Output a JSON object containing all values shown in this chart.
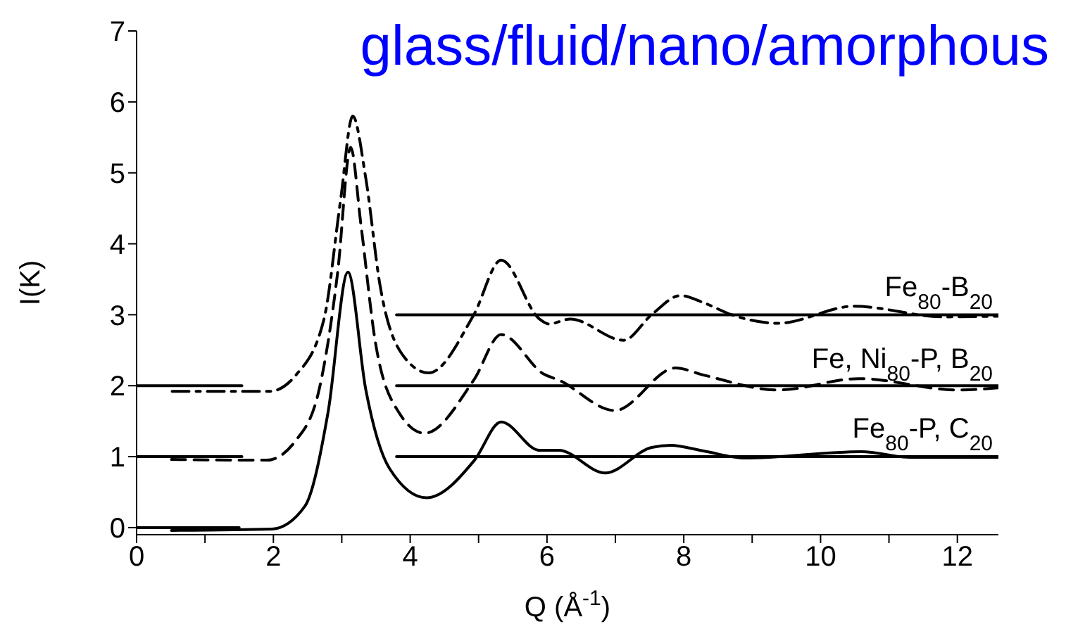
{
  "chart_data": {
    "type": "line",
    "title": "glass/fluid/nano/amorphous",
    "xlabel": "Q (Å$^{-1}$)",
    "ylabel": "I(K)",
    "xlim": [
      0,
      12.6
    ],
    "ylim": [
      -0.1,
      7
    ],
    "xticks": [
      0,
      {
        "value": 1,
        "label": null
      },
      2,
      {
        "value": 3,
        "label": null
      },
      4,
      {
        "value": 5,
        "label": null
      },
      6,
      {
        "value": 7,
        "label": null
      },
      8,
      {
        "value": 9,
        "label": null
      },
      10,
      {
        "value": 11,
        "label": null
      },
      12
    ],
    "yticks": [
      0,
      1,
      2,
      3,
      4,
      5,
      6,
      7
    ],
    "marker": "none",
    "series": [
      {
        "color": "#000000",
        "line_style": "solid",
        "x": [
          0,
          1.5
        ],
        "values": [
          0,
          0
        ]
      },
      {
        "color": "#000000",
        "line_style": "solid",
        "x": [
          0,
          1.54
        ],
        "values": [
          1,
          1
        ]
      },
      {
        "color": "#000000",
        "line_style": "solid",
        "x": [
          0,
          1.54
        ],
        "values": [
          2,
          2
        ]
      },
      {
        "color": "#000000",
        "line_style": "solid",
        "x": [
          3.8,
          12.6
        ],
        "values": [
          1,
          1
        ]
      },
      {
        "color": "#000000",
        "line_style": "solid",
        "x": [
          3.8,
          12.6
        ],
        "values": [
          2,
          2
        ]
      },
      {
        "color": "#000000",
        "line_style": "solid",
        "x": [
          3.8,
          12.6
        ],
        "values": [
          3,
          3
        ]
      },
      {
        "name": "Fe$_{80}$-P, C$_{20}$",
        "color": "#000000",
        "line_style": "solid",
        "x": [
          0.51,
          1.98,
          2.46,
          2.8,
          3.09,
          3.35,
          3.7,
          4.24,
          4.94,
          5.33,
          5.89,
          6.17,
          6.85,
          7.53,
          7.81,
          8.29,
          8.9,
          10.6,
          11.3,
          12.6
        ],
        "values": [
          -0.04,
          -0.02,
          0.3,
          1.63,
          3.6,
          1.95,
          0.83,
          0.42,
          0.95,
          1.49,
          1.09,
          1.09,
          0.77,
          1.13,
          1.16,
          1.08,
          0.98,
          1.07,
          0.99,
          0.99
        ]
      },
      {
        "name": "Fe, Ni$_{80}$-P, B$_{20}$",
        "color": "#000000",
        "line_style": "dashed",
        "x": [
          0.51,
          1.9,
          2.33,
          2.67,
          2.94,
          3.13,
          3.28,
          3.49,
          3.83,
          4.21,
          4.93,
          5.33,
          5.96,
          6.17,
          6.99,
          7.88,
          8.29,
          9.38,
          10.56,
          12.0,
          12.6
        ],
        "values": [
          0.96,
          0.95,
          1.23,
          1.95,
          3.6,
          5.36,
          4.27,
          2.62,
          1.63,
          1.33,
          2.08,
          2.72,
          2.16,
          2.08,
          1.65,
          2.25,
          2.15,
          1.94,
          2.1,
          1.94,
          1.97
        ]
      },
      {
        "name": "Fe$_{80}$-B$_{20}$",
        "color": "#000000",
        "line_style": "dashdot",
        "x": [
          0.52,
          1.94,
          2.33,
          2.74,
          2.98,
          3.16,
          3.35,
          3.56,
          3.9,
          4.27,
          4.93,
          5.33,
          5.89,
          6.03,
          6.34,
          7.12,
          7.53,
          7.95,
          8.29,
          8.7,
          9.38,
          10.49,
          11.8,
          12.6
        ],
        "values": [
          1.92,
          1.92,
          2.15,
          2.94,
          4.6,
          5.8,
          4.93,
          3.41,
          2.42,
          2.18,
          3.0,
          3.77,
          2.94,
          2.87,
          2.94,
          2.64,
          3.0,
          3.27,
          3.17,
          3.0,
          2.88,
          3.12,
          2.97,
          2.98
        ]
      }
    ]
  }
}
